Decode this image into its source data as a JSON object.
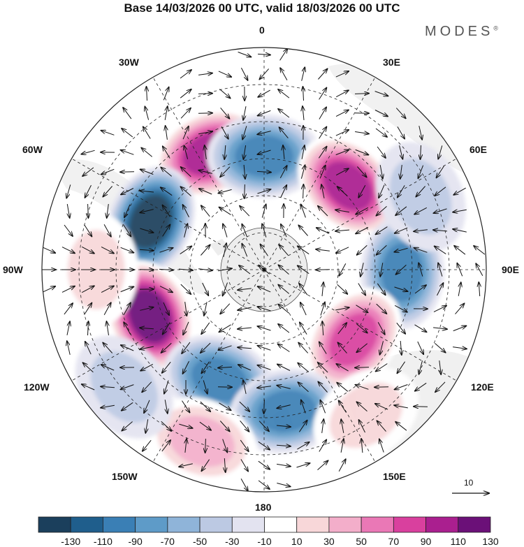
{
  "title": "Base 14/03/2026 00 UTC, valid 18/03/2026 00 UTC",
  "logo": {
    "text": "MODES",
    "mark": "®"
  },
  "longitude_labels": [
    "0",
    "30E",
    "60E",
    "90E",
    "120E",
    "150E",
    "180",
    "150W",
    "120W",
    "90W",
    "60W",
    "30W"
  ],
  "vector_scale": {
    "value": "10"
  },
  "colorbar": {
    "labels": [
      "-130",
      "-110",
      "-90",
      "-70",
      "-50",
      "-30",
      "-10",
      "10",
      "30",
      "50",
      "70",
      "90",
      "110",
      "130"
    ],
    "colors": [
      "#1b3f5c",
      "#1f5e8c",
      "#3a7fb5",
      "#5e9bc8",
      "#8fb4d9",
      "#bcc9e3",
      "#e3e3f0",
      "#ffffff",
      "#f8d7d9",
      "#f3aeca",
      "#ea78b6",
      "#d9409e",
      "#aa1f8f",
      "#6b1078"
    ]
  },
  "map": {
    "projection": "south-polar-stereographic",
    "land_color": "#ededed",
    "anomaly_cells": [
      {
        "name": "pos-30w",
        "value": 110,
        "lon": -25,
        "colat": 52
      },
      {
        "name": "neg-0",
        "value": -90,
        "lon": 0,
        "colat": 46
      },
      {
        "name": "pos-30e",
        "value": 110,
        "lon": 45,
        "colat": 48
      },
      {
        "name": "neg-60w",
        "value": -130,
        "lon": -67,
        "colat": 50
      },
      {
        "name": "neg-90e",
        "value": -90,
        "lon": 91,
        "colat": 56
      },
      {
        "name": "pos-105w",
        "value": 130,
        "lon": -112,
        "colat": 50
      },
      {
        "name": "neg-150w",
        "value": -90,
        "lon": -158,
        "colat": 48
      },
      {
        "name": "pos-125e",
        "value": 90,
        "lon": 128,
        "colat": 46
      },
      {
        "name": "neg-175e",
        "value": -90,
        "lon": 171,
        "colat": 58
      },
      {
        "name": "pos-150w",
        "value": 50,
        "lon": -160,
        "colat": 74
      },
      {
        "name": "pos-90w",
        "value": 30,
        "lon": -90,
        "colat": 68
      },
      {
        "name": "neg-130w",
        "value": -30,
        "lon": -130,
        "colat": 74
      },
      {
        "name": "pos-150e",
        "value": 30,
        "lon": 145,
        "colat": 72
      },
      {
        "name": "neg-60e",
        "value": -30,
        "lon": 65,
        "colat": 70
      }
    ]
  }
}
